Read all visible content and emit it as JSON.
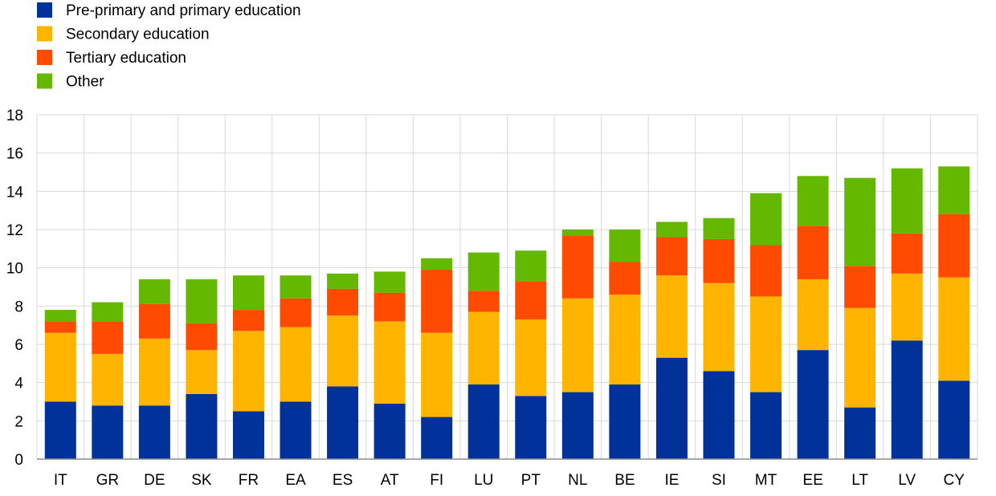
{
  "chart_data": {
    "type": "bar",
    "stacked": true,
    "categories": [
      "IT",
      "GR",
      "DE",
      "SK",
      "FR",
      "EA",
      "ES",
      "AT",
      "FI",
      "LU",
      "PT",
      "NL",
      "BE",
      "IE",
      "SI",
      "MT",
      "EE",
      "LT",
      "LV",
      "CY"
    ],
    "series": [
      {
        "name": "Pre-primary and primary education",
        "color": "#003299",
        "values": [
          3.0,
          2.8,
          2.8,
          3.4,
          2.5,
          3.0,
          3.8,
          2.9,
          2.2,
          3.9,
          3.3,
          3.5,
          3.9,
          5.3,
          4.6,
          3.5,
          5.7,
          2.7,
          6.2,
          4.1
        ]
      },
      {
        "name": "Secondary education",
        "color": "#FFB400",
        "values": [
          3.6,
          2.7,
          3.5,
          2.3,
          4.2,
          3.9,
          3.7,
          4.3,
          4.4,
          3.8,
          4.0,
          4.9,
          4.7,
          4.3,
          4.6,
          5.0,
          3.7,
          5.2,
          3.5,
          5.4
        ]
      },
      {
        "name": "Tertiary education",
        "color": "#FF4B00",
        "values": [
          0.6,
          1.7,
          1.8,
          1.4,
          1.1,
          1.5,
          1.4,
          1.5,
          3.3,
          1.1,
          2.0,
          3.3,
          1.7,
          2.0,
          2.3,
          2.7,
          2.8,
          2.2,
          2.1,
          3.3
        ]
      },
      {
        "name": "Other",
        "color": "#65B800",
        "values": [
          0.6,
          1.0,
          1.3,
          2.3,
          1.8,
          1.2,
          0.8,
          1.1,
          0.6,
          2.0,
          1.6,
          0.3,
          1.7,
          0.8,
          1.1,
          2.7,
          2.6,
          4.6,
          3.4,
          2.5
        ]
      }
    ],
    "yticks": [
      "0",
      "2",
      "4",
      "6",
      "8",
      "10",
      "12",
      "14",
      "16",
      "18"
    ],
    "ylim": [
      0,
      18
    ],
    "grid": true,
    "legend_position": "top-left",
    "gridline_color": "#d9d9d9",
    "axis_color": "#8c8c8c"
  }
}
